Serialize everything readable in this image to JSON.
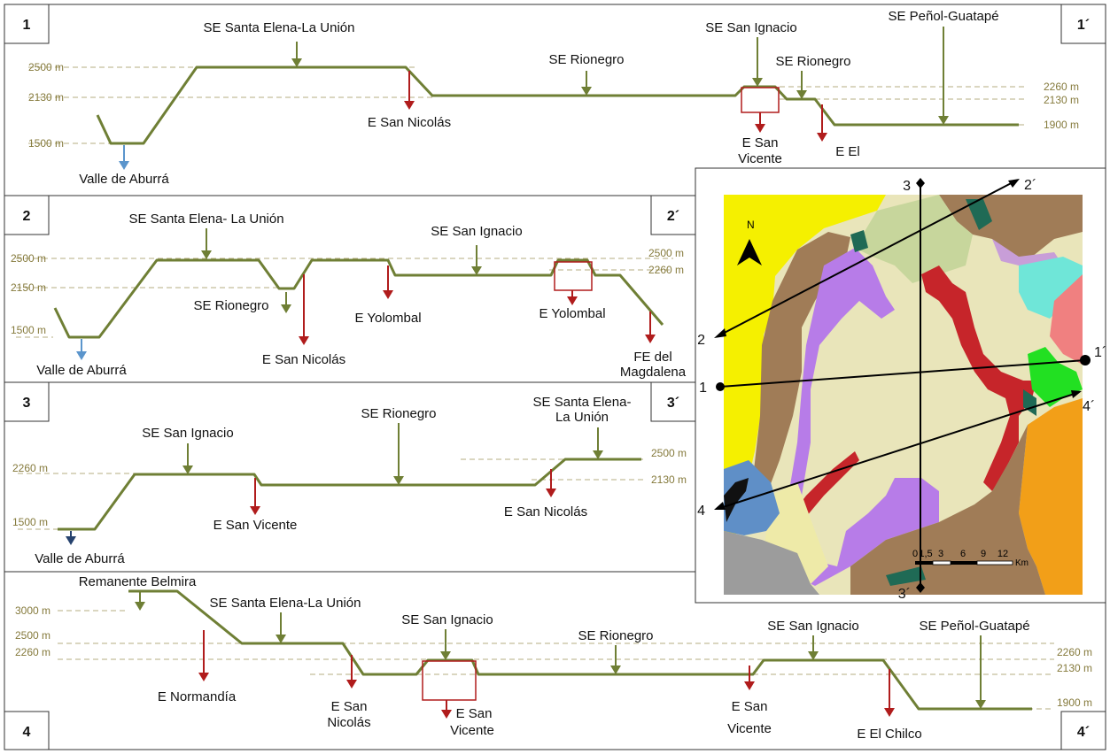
{
  "colors": {
    "profile": "#6f7f35",
    "level": "#b5ae80",
    "level_text": "#857a3c",
    "arrow_red": "#b01c1c",
    "arrow_green": "#6f7f35",
    "arrow_blue": "#5b95cc",
    "arrow_navy": "#26426e",
    "map_bg": "#e9e5ba",
    "map_yellow": "#f5f000",
    "map_brown": "#a07c57",
    "map_purple": "#b77ce8",
    "map_green_light": "#c7d69c",
    "map_red": "#c6252a",
    "map_cyan": "#6fe6d8",
    "map_pink": "#f08080",
    "map_orange": "#f29f18",
    "map_blue": "#5f8fc7",
    "map_gray": "#9c9c9c",
    "map_teal": "#1f6a55",
    "map_bright_green": "#22e022",
    "map_pale": "#eeeaa8"
  },
  "panels": [
    {
      "start_tag": "1",
      "end_tag": "1´",
      "levels": [
        "2500 m",
        "2130 m",
        "1500 m",
        "2260 m",
        "2130 m",
        "1900 m"
      ],
      "labels": [
        "SE Santa Elena-La Unión",
        "SE Rionegro",
        "SE San Ignacio",
        "SE Rionegro",
        "SE Peñol-Guatapé",
        "E San Nicolás",
        "E San",
        "Vicente",
        "E El",
        "Valle de Aburrá"
      ]
    },
    {
      "start_tag": "2",
      "end_tag": "2´",
      "levels": [
        "2500 m",
        "2150 m",
        "1500 m",
        "2500 m",
        "2260 m"
      ],
      "labels": [
        "SE Santa Elena- La Unión",
        "SE San Ignacio",
        "SE Rionegro",
        "E Yolombal",
        "E Yolombal",
        "E San Nicolás",
        "Valle de Aburrá",
        "FE del",
        "Magdalena"
      ]
    },
    {
      "start_tag": "3",
      "end_tag": "3´",
      "levels": [
        "2260 m",
        "1500 m",
        "2500 m",
        "2130 m"
      ],
      "labels": [
        "SE San Ignacio",
        "SE Rionegro",
        "SE Santa Elena-",
        "La Unión",
        "E San Vicente",
        "E San Nicolás",
        "Valle de Aburrá"
      ]
    },
    {
      "start_tag": "4",
      "end_tag": "4´",
      "levels": [
        "3000 m",
        "2500 m",
        "2260 m",
        "2260 m",
        "2130 m",
        "1900 m"
      ],
      "labels": [
        "Remanente Belmira",
        "SE Santa Elena-La Unión",
        "SE San Ignacio",
        "SE Rionegro",
        "SE San Ignacio",
        "SE Peñol-Guatapé",
        "E Normandía",
        "E San",
        "Nicolás",
        "E San",
        "Vicente",
        "E San",
        "Vicente",
        "E El Chilco"
      ]
    }
  ],
  "map": {
    "north": "N",
    "endpoints": [
      "1",
      "1´",
      "2",
      "2´",
      "3",
      "3´",
      "4",
      "4´"
    ],
    "scale_ticks": [
      "0",
      "1,5",
      "3",
      "6",
      "9",
      "12"
    ],
    "scale_unit": "Km"
  }
}
